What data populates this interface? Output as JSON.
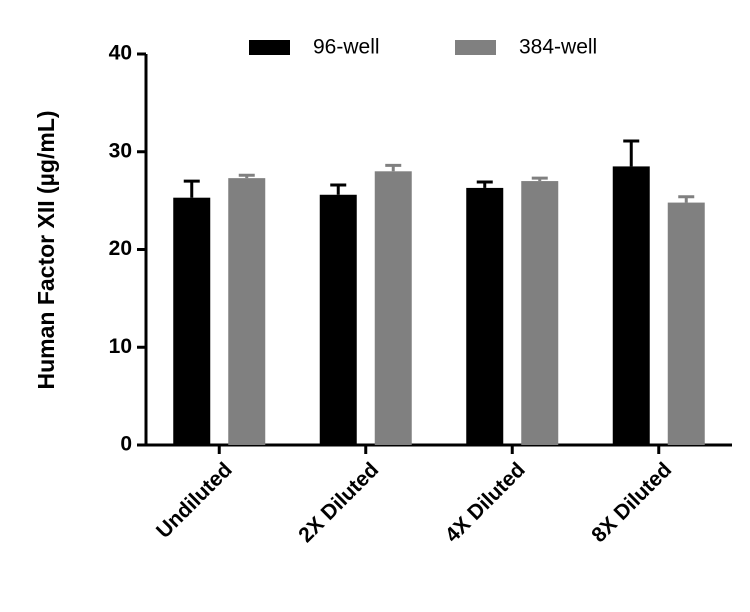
{
  "chart_data": {
    "type": "bar",
    "y_label": "Human Factor XII (µg/mL)",
    "categories": [
      "Undiluted",
      "2X Diluted",
      "4X Diluted",
      "8X Diluted"
    ],
    "series": [
      {
        "name": "96-well",
        "color": "#000000",
        "values": [
          25.3,
          25.6,
          26.3,
          28.5
        ],
        "errors": [
          1.7,
          1.0,
          0.6,
          2.6
        ]
      },
      {
        "name": "384-well",
        "color": "#808080",
        "values": [
          27.3,
          28.0,
          27.0,
          24.8
        ],
        "errors": [
          0.3,
          0.6,
          0.3,
          0.6
        ]
      }
    ],
    "ylim": [
      0,
      40
    ],
    "yticks": [
      0,
      10,
      20,
      30,
      40
    ],
    "grid": false
  }
}
